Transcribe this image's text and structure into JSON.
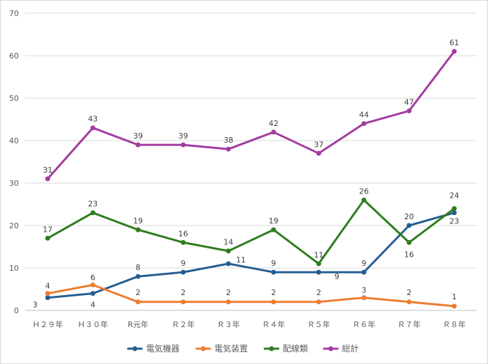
{
  "chart_data": {
    "type": "line",
    "categories": [
      "Ｈ２９年",
      "Ｈ３０年",
      "R元年",
      "Ｒ２年",
      "Ｒ３年",
      "Ｒ４年",
      "Ｒ５年",
      "Ｒ６年",
      "Ｒ７年",
      "Ｒ８年"
    ],
    "ylim": [
      0,
      70
    ],
    "yticks": [
      0,
      10,
      20,
      30,
      40,
      50,
      60,
      70
    ],
    "grid": true,
    "legend": "bottom",
    "series": [
      {
        "name": "電気機器",
        "color": "#255e91",
        "values": [
          3,
          4,
          8,
          9,
          11,
          9,
          9,
          9,
          20,
          23
        ]
      },
      {
        "name": "電気装置",
        "color": "#ed7d31",
        "values": [
          4,
          6,
          2,
          2,
          2,
          2,
          2,
          3,
          2,
          1
        ]
      },
      {
        "name": "配線類",
        "color": "#2e7d1f",
        "values": [
          17,
          23,
          19,
          16,
          14,
          19,
          11,
          26,
          16,
          24
        ]
      },
      {
        "name": "総計",
        "color": "#a23ca0",
        "values": [
          31,
          43,
          39,
          39,
          38,
          42,
          37,
          44,
          47,
          61
        ]
      }
    ]
  }
}
